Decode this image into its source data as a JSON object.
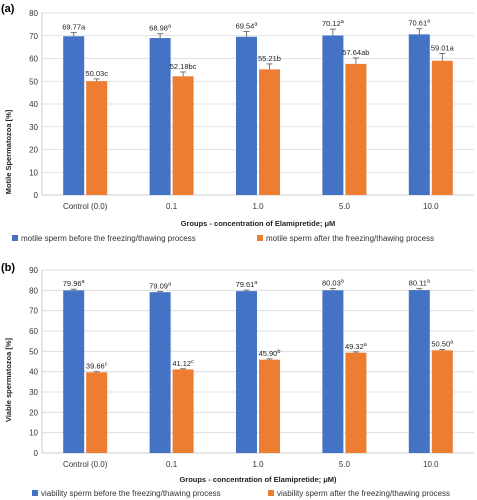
{
  "chart_data": [
    {
      "type": "bar",
      "panel_label": "(a)",
      "ylabel": "Motile Spermatozoa [%]",
      "xlabel": "Groups - concentration of Elamipretide; μM",
      "categories": [
        "Control (0.0)",
        "0.1",
        "1.0",
        "5.0",
        "10.0"
      ],
      "ylim": [
        0,
        80
      ],
      "yticks": [
        0,
        10,
        20,
        30,
        40,
        50,
        60,
        70,
        80
      ],
      "grid": true,
      "legend_position": "bottom",
      "series": [
        {
          "name": "motile sperm before the freezing/thawing process",
          "color": "#4472C4",
          "values": [
            69.77,
            68.98,
            69.54,
            70.12,
            70.61
          ],
          "errors": [
            1.6,
            1.9,
            2.3,
            2.8,
            2.5
          ],
          "labels": [
            {
              "value": "69.77",
              "sig": "a",
              "sup": false
            },
            {
              "value": "68.98",
              "sig": "a",
              "sup": true
            },
            {
              "value": "69.54",
              "sig": "a",
              "sup": true
            },
            {
              "value": "70.12",
              "sig": "a",
              "sup": true
            },
            {
              "value": "70.61",
              "sig": "a",
              "sup": true
            }
          ]
        },
        {
          "name": "motile sperm after the freezing/thawing process",
          "color": "#ED7D31",
          "values": [
            50.03,
            52.18,
            55.21,
            57.64,
            59.01
          ],
          "errors": [
            1.0,
            1.9,
            2.4,
            2.6,
            3.2
          ],
          "labels": [
            {
              "value": "50.03",
              "sig": "c",
              "sup": false
            },
            {
              "value": "52.18",
              "sig": "bc",
              "sup": false
            },
            {
              "value": "55.21",
              "sig": "b",
              "sup": false
            },
            {
              "value": "57.64",
              "sig": "ab",
              "sup": false
            },
            {
              "value": "59.01",
              "sig": "a",
              "sup": false
            }
          ]
        }
      ]
    },
    {
      "type": "bar",
      "panel_label": "(b)",
      "ylabel": "Viable spermatozoa [%]",
      "xlabel": "Groups - concentration of Elamipretide; μM)",
      "categories": [
        "Control (0.0)",
        "0.1",
        "1.0",
        "5.0",
        "10.0"
      ],
      "ylim": [
        0,
        90
      ],
      "yticks": [
        0,
        10,
        20,
        30,
        40,
        50,
        60,
        70,
        80,
        90
      ],
      "grid": true,
      "legend_position": "bottom",
      "series": [
        {
          "name": "viability sperm before the freezing/thawing process",
          "color": "#4472C4",
          "values": [
            79.96,
            79.09,
            79.61,
            80.03,
            80.11
          ],
          "errors": [
            0.6,
            0.3,
            0.5,
            0.9,
            0.7
          ],
          "labels": [
            {
              "value": "79.96",
              "sig": "a",
              "sup": true
            },
            {
              "value": "79.09",
              "sig": "a",
              "sup": true
            },
            {
              "value": "79.61",
              "sig": "a",
              "sup": true
            },
            {
              "value": "80.03",
              "sig": "a",
              "sup": true
            },
            {
              "value": "80.11",
              "sig": "a",
              "sup": true
            }
          ]
        },
        {
          "name": "viability sperm after the freezing/thawing process",
          "color": "#ED7D31",
          "values": [
            39.66,
            41.12,
            45.9,
            49.32,
            50.5
          ],
          "errors": [
            0.3,
            0.3,
            0.4,
            0.4,
            0.4
          ],
          "labels": [
            {
              "value": "39.66",
              "sig": "c",
              "sup": true
            },
            {
              "value": "41.12",
              "sig": "c",
              "sup": true
            },
            {
              "value": "45.90",
              "sig": "b",
              "sup": true
            },
            {
              "value": "49.32",
              "sig": "a",
              "sup": true
            },
            {
              "value": "50.50",
              "sig": "a",
              "sup": true
            }
          ]
        }
      ]
    }
  ]
}
